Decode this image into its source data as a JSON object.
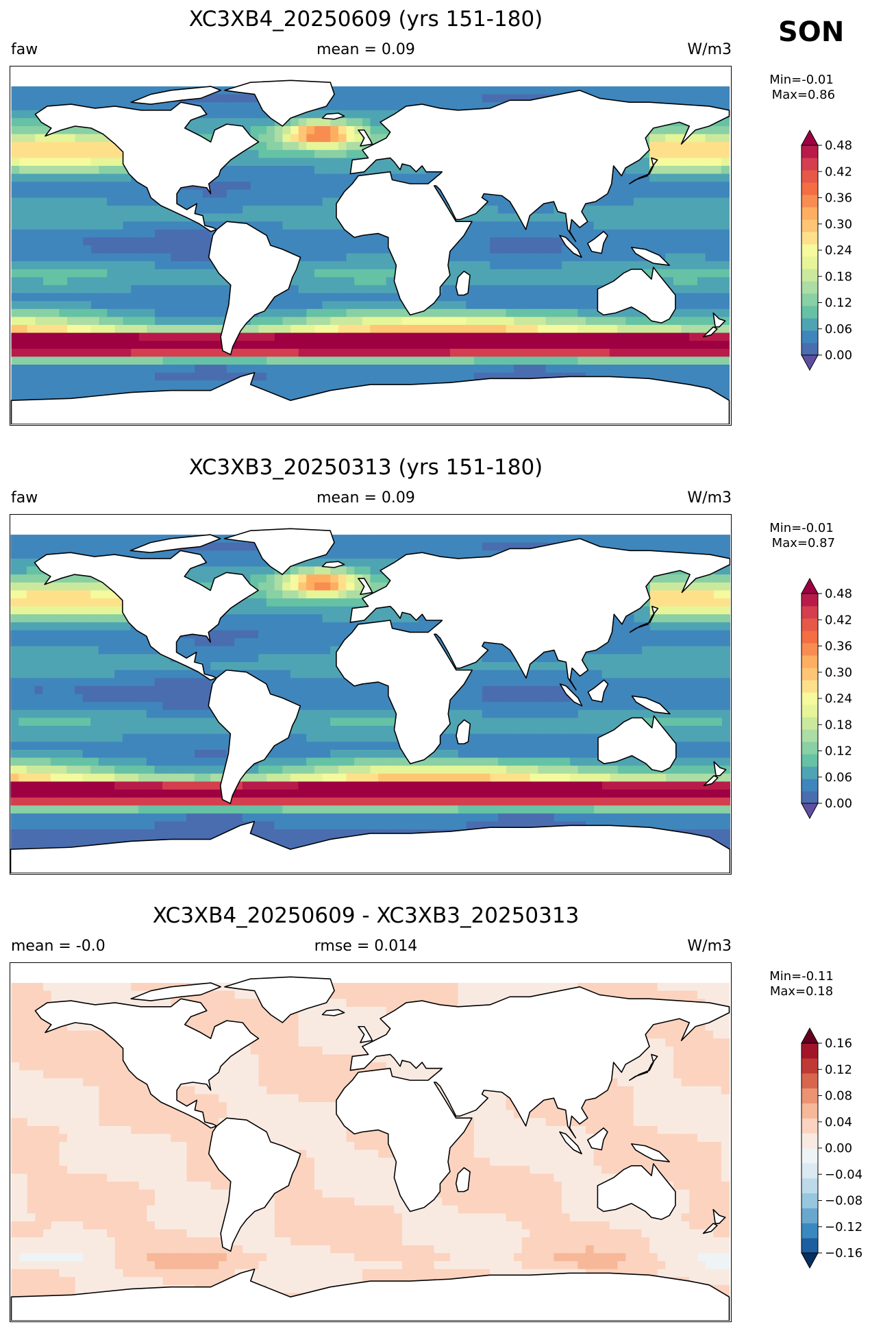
{
  "season": "SON",
  "panels": [
    {
      "id": "top",
      "title": "XC3XB4_20250609 (yrs 151-180)",
      "left_label": "faw",
      "center_label": "mean = 0.09",
      "right_label": "W/m3",
      "minmax": "Min=-0.01\n Max=0.86",
      "colorbar": {
        "ticks": [
          "0.00",
          "0.06",
          "0.12",
          "0.18",
          "0.24",
          "0.30",
          "0.36",
          "0.42",
          "0.48"
        ],
        "colors": [
          "#5e4fa2",
          "#4a6db0",
          "#3f86bc",
          "#4fa4b3",
          "#66c2a5",
          "#89d0a4",
          "#abdda4",
          "#cbe99d",
          "#e6f598",
          "#f4fa9d",
          "#fee08b",
          "#fdc574",
          "#fdae61",
          "#f88d51",
          "#f46d43",
          "#e65848",
          "#d53e4f",
          "#b81b4a",
          "#9e0142"
        ],
        "extend": "both"
      }
    },
    {
      "id": "middle",
      "title": "XC3XB3_20250313 (yrs 151-180)",
      "left_label": "faw",
      "center_label": "mean = 0.09",
      "right_label": "W/m3",
      "minmax": "Min=-0.01\n Max=0.87",
      "colorbar": {
        "ticks": [
          "0.00",
          "0.06",
          "0.12",
          "0.18",
          "0.24",
          "0.30",
          "0.36",
          "0.42",
          "0.48"
        ],
        "colors": [
          "#5e4fa2",
          "#4a6db0",
          "#3f86bc",
          "#4fa4b3",
          "#66c2a5",
          "#89d0a4",
          "#abdda4",
          "#cbe99d",
          "#e6f598",
          "#f4fa9d",
          "#fee08b",
          "#fdc574",
          "#fdae61",
          "#f88d51",
          "#f46d43",
          "#e65848",
          "#d53e4f",
          "#b81b4a",
          "#9e0142"
        ],
        "extend": "both"
      }
    },
    {
      "id": "bottom",
      "title": "XC3XB4_20250609 - XC3XB3_20250313",
      "left_label": "mean = -0.0",
      "center_label": "rmse = 0.014",
      "right_label": "W/m3",
      "minmax": "Min=-0.11\nMax=0.18",
      "colorbar": {
        "ticks": [
          "−0.16",
          "−0.12",
          "−0.08",
          "−0.04",
          "0.00",
          "0.04",
          "0.08",
          "0.12",
          "0.16"
        ],
        "colors": [
          "#053061",
          "#1d5ea0",
          "#3a88c0",
          "#6aa7cf",
          "#97c6df",
          "#bddaea",
          "#dbe9f2",
          "#eef3f6",
          "#f9eae1",
          "#fbd3bf",
          "#f7b799",
          "#ec9373",
          "#d8664f",
          "#c03a35",
          "#a21529",
          "#67001f"
        ],
        "extend": "both"
      }
    }
  ]
}
